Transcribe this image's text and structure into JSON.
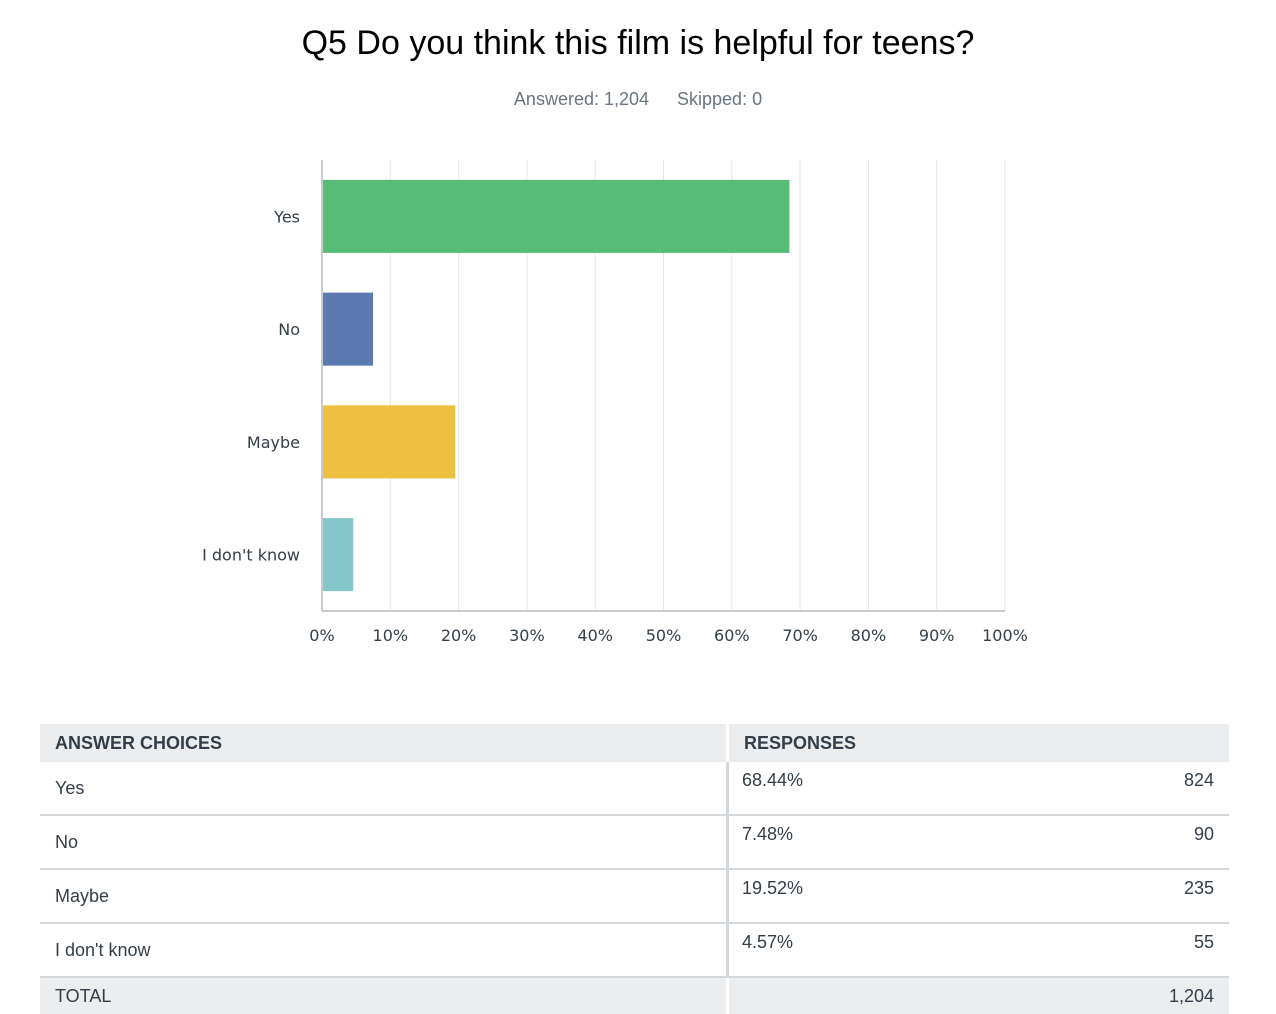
{
  "question": {
    "title": "Q5 Do you think this film is helpful for teens?",
    "answered": "Answered: 1,204",
    "skipped": "Skipped: 0"
  },
  "colors": {
    "yes": "#57bd76",
    "no": "#5c7ab1",
    "maybe": "#eec03f",
    "idk": "#84c6cc",
    "grid": "#e4e6e8",
    "axis": "#c8cbcd",
    "label": "#333e48"
  },
  "chart_data": {
    "type": "bar",
    "orientation": "horizontal",
    "categories": [
      "Yes",
      "No",
      "Maybe",
      "I don't know"
    ],
    "values": [
      68.44,
      7.48,
      19.52,
      4.57
    ],
    "xlim": [
      0,
      100
    ],
    "xticks": [
      "0%",
      "10%",
      "20%",
      "30%",
      "40%",
      "50%",
      "60%",
      "70%",
      "80%",
      "90%",
      "100%"
    ],
    "grid": true,
    "title": "",
    "xlabel": "",
    "ylabel": ""
  },
  "table": {
    "headers": {
      "choices": "ANSWER CHOICES",
      "responses": "RESPONSES"
    },
    "rows": [
      {
        "choice": "Yes",
        "pct": "68.44%",
        "count": "824"
      },
      {
        "choice": "No",
        "pct": "7.48%",
        "count": "90"
      },
      {
        "choice": "Maybe",
        "pct": "19.52%",
        "count": "235"
      },
      {
        "choice": "I don't know",
        "pct": "4.57%",
        "count": "55"
      }
    ],
    "total_label": "TOTAL",
    "total_count": "1,204"
  }
}
